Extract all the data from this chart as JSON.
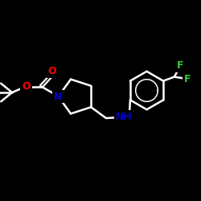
{
  "background_color": "#000000",
  "bond_color": "#ffffff",
  "atom_colors": {
    "O": "#ff0000",
    "N": "#0000cd",
    "F": "#32cd32",
    "C": "#ffffff",
    "H": "#ffffff"
  },
  "figsize": [
    2.5,
    2.5
  ],
  "dpi": 100,
  "xlim": [
    0,
    10
  ],
  "ylim": [
    0,
    10
  ]
}
